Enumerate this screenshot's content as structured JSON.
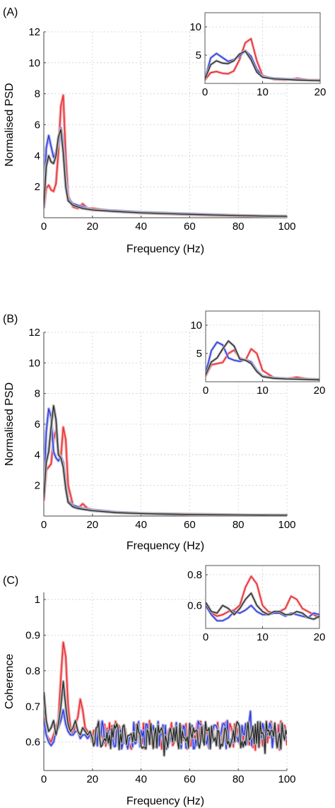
{
  "colors": {
    "red": "#e8252b",
    "blue": "#2a35d6",
    "black": "#262626",
    "red_band": "#f4a0a2",
    "blue_band": "#a7acf0",
    "black_band": "#b3b3b3",
    "grid": "#cfcfcf"
  },
  "chart_data": [
    {
      "panel_label": "(A)",
      "type": "line",
      "xlabel": "Frequency (Hz)",
      "ylabel": "Normalised PSD",
      "xlim": [
        0,
        100
      ],
      "ylim": [
        0,
        12
      ],
      "xticks": [
        0,
        20,
        40,
        60,
        80,
        100
      ],
      "yticks": [
        2,
        4,
        6,
        8,
        10,
        12
      ],
      "grid": true,
      "series": [
        {
          "color": "red",
          "x": [
            0,
            1,
            2,
            3,
            4,
            5,
            6,
            7,
            8,
            9,
            10,
            12,
            14,
            16,
            18,
            20,
            30,
            40,
            50,
            60,
            70,
            80,
            90,
            100
          ],
          "y": [
            0.6,
            1.9,
            2.1,
            1.8,
            1.7,
            2.2,
            4.2,
            7.2,
            7.9,
            4.0,
            1.4,
            0.7,
            0.6,
            0.9,
            0.6,
            0.6,
            0.4,
            0.3,
            0.25,
            0.2,
            0.15,
            0.12,
            0.1,
            0.08
          ]
        },
        {
          "color": "blue",
          "x": [
            0,
            1,
            2,
            3,
            4,
            5,
            6,
            7,
            8,
            9,
            10,
            12,
            14,
            16,
            18,
            20,
            30,
            40,
            50,
            60,
            70,
            80,
            90,
            100
          ],
          "y": [
            0.7,
            4.5,
            5.3,
            4.6,
            3.9,
            4.2,
            4.8,
            5.8,
            4.8,
            2.5,
            1.2,
            0.9,
            0.8,
            0.7,
            0.6,
            0.5,
            0.45,
            0.35,
            0.3,
            0.25,
            0.2,
            0.15,
            0.12,
            0.1
          ]
        },
        {
          "color": "black",
          "x": [
            0,
            1,
            2,
            3,
            4,
            5,
            6,
            7,
            8,
            9,
            10,
            12,
            14,
            16,
            18,
            20,
            30,
            40,
            50,
            60,
            70,
            80,
            90,
            100
          ],
          "y": [
            0.8,
            3.3,
            4.0,
            3.6,
            3.5,
            4.0,
            5.2,
            5.7,
            4.2,
            2.0,
            1.1,
            0.8,
            0.7,
            0.6,
            0.55,
            0.5,
            0.4,
            0.32,
            0.27,
            0.22,
            0.18,
            0.14,
            0.11,
            0.09
          ]
        }
      ],
      "inset": {
        "xlim": [
          0,
          20
        ],
        "ylim": [
          0,
          12.5
        ],
        "xticks": [
          0,
          10,
          20
        ],
        "yticks": [
          5,
          10
        ],
        "series": [
          {
            "color": "red",
            "x": [
              0,
              1,
              2,
              3,
              4,
              5,
              6,
              7,
              8,
              9,
              10,
              12,
              14,
              16,
              18,
              20
            ],
            "y": [
              0.6,
              1.9,
              2.1,
              1.8,
              1.7,
              2.2,
              4.2,
              7.2,
              7.9,
              4.0,
              1.4,
              0.7,
              0.6,
              0.9,
              0.6,
              0.6
            ]
          },
          {
            "color": "blue",
            "x": [
              0,
              1,
              2,
              3,
              4,
              5,
              6,
              7,
              8,
              9,
              10,
              12,
              14,
              16,
              18,
              20
            ],
            "y": [
              0.7,
              4.5,
              5.3,
              4.6,
              3.9,
              4.2,
              4.8,
              5.8,
              4.8,
              2.5,
              1.2,
              0.9,
              0.8,
              0.7,
              0.6,
              0.5
            ]
          },
          {
            "color": "black",
            "x": [
              0,
              1,
              2,
              3,
              4,
              5,
              6,
              7,
              8,
              9,
              10,
              12,
              14,
              16,
              18,
              20
            ],
            "y": [
              0.8,
              3.3,
              4.0,
              3.6,
              3.5,
              4.0,
              5.2,
              5.7,
              4.2,
              2.0,
              1.1,
              0.8,
              0.7,
              0.6,
              0.55,
              0.5
            ]
          }
        ]
      }
    },
    {
      "panel_label": "(B)",
      "type": "line",
      "xlabel": "Frequency (Hz)",
      "ylabel": "Normalised PSD",
      "xlim": [
        0,
        100
      ],
      "ylim": [
        0,
        12
      ],
      "xticks": [
        0,
        20,
        40,
        60,
        80,
        100
      ],
      "yticks": [
        2,
        4,
        6,
        8,
        10,
        12
      ],
      "grid": true,
      "series": [
        {
          "color": "red",
          "x": [
            0,
            1,
            2,
            3,
            4,
            5,
            6,
            7,
            8,
            9,
            10,
            12,
            14,
            16,
            18,
            20,
            30,
            40,
            50,
            60,
            70,
            80,
            90,
            100
          ],
          "y": [
            1.0,
            3.0,
            3.2,
            3.4,
            5.0,
            5.6,
            4.2,
            3.8,
            5.8,
            5.0,
            2.0,
            0.7,
            0.5,
            0.8,
            0.5,
            0.4,
            0.25,
            0.18,
            0.15,
            0.12,
            0.1,
            0.08,
            0.06,
            0.05
          ]
        },
        {
          "color": "blue",
          "x": [
            0,
            1,
            2,
            3,
            4,
            5,
            6,
            7,
            8,
            9,
            10,
            12,
            14,
            16,
            18,
            20,
            30,
            40,
            50,
            60,
            70,
            80,
            90,
            100
          ],
          "y": [
            1.5,
            5.5,
            7.0,
            6.5,
            4.2,
            3.8,
            3.6,
            3.9,
            3.5,
            2.0,
            1.0,
            0.7,
            0.6,
            0.5,
            0.45,
            0.4,
            0.25,
            0.18,
            0.14,
            0.11,
            0.09,
            0.07,
            0.06,
            0.05
          ]
        },
        {
          "color": "black",
          "x": [
            0,
            1,
            2,
            3,
            4,
            5,
            6,
            7,
            8,
            9,
            10,
            12,
            14,
            16,
            18,
            20,
            30,
            40,
            50,
            60,
            70,
            80,
            90,
            100
          ],
          "y": [
            1.2,
            3.5,
            4.2,
            5.8,
            7.2,
            6.3,
            4.0,
            3.8,
            3.2,
            1.8,
            0.9,
            0.6,
            0.5,
            0.45,
            0.4,
            0.35,
            0.22,
            0.16,
            0.13,
            0.1,
            0.08,
            0.07,
            0.06,
            0.05
          ]
        }
      ],
      "inset": {
        "xlim": [
          0,
          20
        ],
        "ylim": [
          0,
          12.5
        ],
        "xticks": [
          0,
          10,
          20
        ],
        "yticks": [
          5,
          10
        ],
        "series": [
          {
            "color": "red",
            "x": [
              0,
              1,
              2,
              3,
              4,
              5,
              6,
              7,
              8,
              9,
              10,
              12,
              14,
              16,
              18,
              20
            ],
            "y": [
              1.0,
              3.0,
              3.2,
              3.4,
              5.0,
              5.6,
              4.2,
              3.8,
              5.8,
              5.0,
              2.0,
              0.7,
              0.5,
              0.8,
              0.5,
              0.4
            ]
          },
          {
            "color": "blue",
            "x": [
              0,
              1,
              2,
              3,
              4,
              5,
              6,
              7,
              8,
              9,
              10,
              12,
              14,
              16,
              18,
              20
            ],
            "y": [
              1.5,
              5.5,
              7.0,
              6.5,
              4.2,
              3.8,
              3.6,
              3.9,
              3.5,
              2.0,
              1.0,
              0.7,
              0.6,
              0.5,
              0.45,
              0.4
            ]
          },
          {
            "color": "black",
            "x": [
              0,
              1,
              2,
              3,
              4,
              5,
              6,
              7,
              8,
              9,
              10,
              12,
              14,
              16,
              18,
              20
            ],
            "y": [
              1.2,
              3.5,
              4.2,
              5.8,
              7.2,
              6.3,
              4.0,
              3.8,
              3.2,
              1.8,
              0.9,
              0.6,
              0.5,
              0.45,
              0.4,
              0.35
            ]
          }
        ]
      }
    },
    {
      "panel_label": "(C)",
      "type": "line",
      "xlabel": "Frequency (Hz)",
      "ylabel": "Coherence",
      "xlim": [
        0,
        100
      ],
      "ylim": [
        0.52,
        1.02
      ],
      "xticks": [
        0,
        20,
        40,
        60,
        80,
        100
      ],
      "yticks": [
        0.6,
        0.7,
        0.8,
        0.9,
        1
      ],
      "ytick_labels": [
        "0.6",
        "0.7",
        "0.8",
        "0.9",
        "1"
      ],
      "grid": true,
      "series": [
        {
          "color": "red",
          "x": [
            0,
            1,
            2,
            3,
            4,
            5,
            6,
            7,
            8,
            9,
            10,
            11,
            12,
            13,
            14,
            15,
            16,
            17,
            18,
            19,
            20
          ],
          "y": [
            0.67,
            0.62,
            0.61,
            0.6,
            0.62,
            0.64,
            0.66,
            0.78,
            0.88,
            0.84,
            0.7,
            0.64,
            0.62,
            0.65,
            0.67,
            0.72,
            0.69,
            0.64,
            0.63,
            0.62,
            0.6
          ]
        },
        {
          "color": "blue",
          "x": [
            0,
            1,
            2,
            3,
            4,
            5,
            6,
            7,
            8,
            9,
            10,
            11,
            12,
            13,
            14,
            15,
            16,
            17,
            18,
            19,
            20
          ],
          "y": [
            0.66,
            0.62,
            0.6,
            0.59,
            0.6,
            0.63,
            0.64,
            0.66,
            0.69,
            0.65,
            0.63,
            0.62,
            0.62,
            0.63,
            0.63,
            0.61,
            0.62,
            0.62,
            0.61,
            0.62,
            0.61
          ]
        },
        {
          "color": "black",
          "x": [
            0,
            1,
            2,
            3,
            4,
            5,
            6,
            7,
            8,
            9,
            10,
            11,
            12,
            13,
            14,
            15,
            16,
            17,
            18,
            19,
            20
          ],
          "y": [
            0.74,
            0.66,
            0.63,
            0.64,
            0.66,
            0.62,
            0.65,
            0.7,
            0.77,
            0.7,
            0.65,
            0.63,
            0.64,
            0.66,
            0.63,
            0.62,
            0.64,
            0.63,
            0.62,
            0.63,
            0.61
          ]
        }
      ],
      "noise_band": {
        "x_from": 20,
        "x_to": 100,
        "center": 0.62,
        "amplitude": 0.04
      },
      "inset": {
        "xlim": [
          0,
          20
        ],
        "ylim": [
          0.45,
          0.86
        ],
        "xticks": [
          0,
          10,
          20
        ],
        "yticks": [
          0.6,
          0.8
        ],
        "ytick_labels": [
          "0.6",
          "0.8"
        ],
        "series": [
          {
            "color": "red",
            "x": [
              0,
              1,
              2,
              3,
              4,
              5,
              6,
              7,
              8,
              9,
              10,
              11,
              12,
              13,
              14,
              15,
              16,
              17,
              18,
              19,
              20
            ],
            "y": [
              0.6,
              0.55,
              0.53,
              0.54,
              0.56,
              0.57,
              0.6,
              0.72,
              0.79,
              0.74,
              0.6,
              0.56,
              0.55,
              0.56,
              0.58,
              0.66,
              0.64,
              0.58,
              0.56,
              0.54,
              0.52
            ]
          },
          {
            "color": "blue",
            "x": [
              0,
              1,
              2,
              3,
              4,
              5,
              6,
              7,
              8,
              9,
              10,
              11,
              12,
              13,
              14,
              15,
              16,
              17,
              18,
              19,
              20
            ],
            "y": [
              0.6,
              0.54,
              0.5,
              0.5,
              0.52,
              0.56,
              0.55,
              0.57,
              0.6,
              0.56,
              0.54,
              0.54,
              0.55,
              0.55,
              0.53,
              0.55,
              0.54,
              0.53,
              0.52,
              0.55,
              0.54
            ]
          },
          {
            "color": "black",
            "x": [
              0,
              1,
              2,
              3,
              4,
              5,
              6,
              7,
              8,
              9,
              10,
              11,
              12,
              13,
              14,
              15,
              16,
              17,
              18,
              19,
              20
            ],
            "y": [
              0.62,
              0.56,
              0.55,
              0.6,
              0.58,
              0.54,
              0.58,
              0.64,
              0.68,
              0.6,
              0.56,
              0.54,
              0.56,
              0.56,
              0.54,
              0.54,
              0.56,
              0.55,
              0.52,
              0.51,
              0.53
            ]
          }
        ]
      }
    }
  ]
}
